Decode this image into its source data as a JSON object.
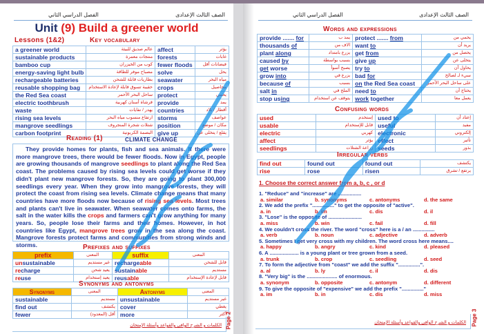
{
  "left_page": {
    "header_right": "الصف الثالث الإعدادى",
    "header_left": "الفصل الدراسي الثاني",
    "title": {
      "unit": "Unit",
      "num": "(9)",
      "name": "Build a greener world"
    },
    "lessons": "Lessons (1&2)",
    "key_vocab_title": "Key vocabulary",
    "vocab": [
      [
        "a greener world",
        "عالم صديق للبيئة",
        "affect",
        "يؤثر"
      ],
      [
        "sustainable products",
        "منتجات معمرة",
        "forests",
        "غابات"
      ],
      [
        "bamboo cup",
        "كوب من الخيزران",
        "fewer floods",
        "فيضانات أقل"
      ],
      [
        "energy-saving light bulb",
        "مصباح موفر للطاقة",
        "solve",
        "يحل"
      ],
      [
        "rechargeable batteries",
        "بطاريات قابلة للشحن",
        "seawater",
        "مياه البحر"
      ],
      [
        "reusable shopping bag",
        "حقيبة تسوق قابلة لإعادة الاستخدام",
        "crops",
        "محاصيل"
      ],
      [
        "the Red Sea coast",
        "ساحل البحر الأحمر",
        "protect",
        "يحمي"
      ],
      [
        "electric toothbrush",
        "فرشاة أسنان كهربية",
        "provide",
        "يمد"
      ],
      [
        "waste",
        "يهدر / نفايات",
        "countries",
        "أقطار / بلاد"
      ],
      [
        "rising sea levels",
        "ارتفاع منسوب مياه البحر",
        "storms",
        "عواصف"
      ],
      [
        "mangrove seedlings",
        "شتلات شجرة المنجروف",
        "position",
        "مكان / موضع"
      ],
      [
        "carbon footprint",
        "البصمة الكربونية",
        "give up",
        "يقلع / يتخلى عن"
      ]
    ],
    "reading_title": "Reading (1)",
    "reading_subtitle": "CLIMATE CHANGE",
    "reading": [
      {
        "t": "They provide homes for plants, fish and sea animals. If there were more mangrove trees, there would be fewer floods. Now in Egypt, people are growing thousands of mangrove "
      },
      {
        "t": "seedlings",
        "red": true
      },
      {
        "t": " to plant along the Red Sea coast. The problems caused by rising sea levels could get worse if they didn't plant new mangrove forests. So, they are going to plant 300,000 seedlings every year. When they grow into mangrove forests, they will protect the coast from rising sea levels. Climate change means that many countries have more floods now because of "
      },
      {
        "t": "rising sea levels",
        "red": true
      },
      {
        "t": ". Most trees and plants can't live in seawater. When seawater comes onto farms, the salt in the water kills the "
      },
      {
        "t": "crops",
        "red": true
      },
      {
        "t": " and farmers can't grow anything for many years. So, people lose their farms and their homes. However, in hot countries like Egypt, "
      },
      {
        "t": "mangrove trees",
        "red": true
      },
      {
        "t": " grow in the sea along the coast. Mangrove forests protect farms and communities from strong winds and storms."
      }
    ],
    "prefix_title": "Prefixes and suffixes",
    "prefix_head": [
      "prefix",
      "المعنى",
      "suffix",
      "المعنى"
    ],
    "prefix_rows": [
      {
        "p1": "un",
        "w1": "sustainable",
        "a1": "غير مستديم",
        "w2": "recharge",
        "s2": "able",
        "a2": "قابل للشحن"
      },
      {
        "p1": "re",
        "w1": "charge",
        "a1": "يعيد شحن",
        "w2": "sustain",
        "s2": "able",
        "a2": "مستديم"
      },
      {
        "p1": "re",
        "w1": "use",
        "a1": "يعيد إستخدام",
        "w2": "reus",
        "s2": "able",
        "a2": "قابل لإعادة الإستخدام"
      }
    ],
    "syn_title": "Synonyms and antonyms",
    "syn_head": [
      "Synonyms",
      "المعنى",
      "Antonyms",
      "المعنى"
    ],
    "syn_rows": [
      [
        "sustainable",
        "مستديم",
        "unsustainable",
        "غير مستديم"
      ],
      [
        "find out",
        "يكتشف",
        "cover",
        "يغطي"
      ],
      [
        "fewer",
        "أقل (المعدود)",
        "more",
        "أكثر"
      ]
    ],
    "footer": "الكلمات و الشرح الوافى والقواعد وأسئلة الإمتحان",
    "page_label": "Page 2"
  },
  "right_page": {
    "header_right": "الصف الثالث الإعدادى",
    "header_left": "الفصل الدراسي الثاني",
    "words_title": "Words and expressions",
    "words": [
      [
        {
          "a": "provide ....... ",
          "u": "for"
        },
        "يمد ب",
        {
          "a": "protect ....... ",
          "u": "from"
        },
        "يحمي من"
      ],
      [
        {
          "a": "thousands ",
          "u": "of"
        },
        "الاف من",
        {
          "a": "want  ",
          "u": "to"
        },
        "يريد أن"
      ],
      [
        {
          "a": "plant ",
          "u": "along"
        },
        "يزرع بامتداد",
        {
          "a": "get ",
          "u": "from"
        },
        "يحصل من"
      ],
      [
        {
          "a": "caused ",
          "u": "by"
        },
        "بسبب بواسطة",
        {
          "a": "give ",
          "u": "up"
        },
        "يتخلى عن"
      ],
      [
        {
          "a": "",
          "u": "get",
          "b": " worse"
        },
        "يصبح أسوأ",
        {
          "a": "try ",
          "u": "to"
        },
        "يحاول أن"
      ],
      [
        {
          "a": "grow ",
          "u": "into"
        },
        "يزرع في",
        {
          "a": "bad ",
          "u": "for"
        },
        "سيء لـ لصالح"
      ],
      [
        {
          "a": "because ",
          "u": "of"
        },
        "بسبب",
        {
          "a": "",
          "u": "on",
          "b": " the Red Sea coast"
        },
        "على ساحل البحر الأحمر"
      ],
      [
        {
          "a": "salt ",
          "u": "in"
        },
        "الملح في",
        {
          "a": "need ",
          "u": "to"
        },
        "يحتاج أن"
      ],
      [
        {
          "a": "stop us",
          "u": "ing"
        },
        "يتوقف عن استخدام",
        {
          "a": "",
          "u": "work",
          "b": " together"
        },
        "يعمل معا"
      ]
    ],
    "confusing_title": "Confusing words",
    "confusing": [
      [
        "used",
        "إستخدم",
        "used to",
        "إعتاد أن"
      ],
      [
        "usable",
        "قابل للإستخدام",
        "useful",
        "مفيد"
      ],
      [
        "electric",
        "كهربي",
        "electronic",
        "إلكتروني"
      ],
      [
        "affect",
        "يؤثر",
        "effect",
        "تأثير"
      ],
      [
        "seedlings",
        "زراعة الشتلات",
        "seeds",
        "بذور"
      ]
    ],
    "irregular_title": "Irregular verbs",
    "irregular": [
      [
        "find out",
        "found out",
        "found out",
        "يكتشف"
      ],
      [
        "rise",
        "rose",
        "risen",
        "يرتفع / تشرق"
      ]
    ],
    "q_heading": "1. Choose the correct answer from a, b, c , or d",
    "questions": [
      {
        "q": "1. \"Reduce\" and \"increase\" are ................",
        "o": [
          "a. similar",
          "b. synonyms",
          "c. antonyms",
          "d. the same"
        ]
      },
      {
        "q": "2. We add the prefix \"...............\" to get the opposite of \"active\".",
        "o": [
          "a. in",
          "b. im",
          "c. dis",
          "d. il"
        ]
      },
      {
        "q": "3. \"Lose\" is the opposite of .......................",
        "o": [
          "a. miss",
          "b. win",
          "c. fail",
          "d. fill"
        ]
      },
      {
        "q": "4. We couldn't cross the river. The word \"cross\" here is a / an ...............",
        "o": [
          "a. verb",
          "b. noun",
          "c. adjective",
          "d. adverb"
        ]
      },
      {
        "q": "5. Sometimes I get very cross with my children. The word cross here means....",
        "o": [
          "a. happy",
          "b. angry",
          "c. kind",
          "d. pleased"
        ]
      },
      {
        "q": "6.  A .................... is a young plant or tree grown from a seed.",
        "o": [
          "a. trunk",
          "b. crop",
          "c. seedling",
          "d. seed"
        ]
      },
      {
        "q": "7. To form the adjective from \"coast\" we add the suffix \"...............\".",
        "o": [
          "a. al",
          "b. ly",
          "c. il",
          "d. dis"
        ]
      },
      {
        "q": "8. \"Very big\" is the ..................... of enormous.",
        "o": [
          "a. synonym",
          "b. opposite",
          "c. antonym",
          "d. different"
        ]
      },
      {
        "q": "9. To give the opposite of \"expensive\" we add the prefix \"...............\"",
        "o": [
          "a. im",
          "b. in",
          "c. dis",
          "d. miss"
        ]
      }
    ],
    "footer": "الكلمات و الشرح الوافى والقواعد وأسئلة الإمتحان",
    "page_label": "Page 3"
  },
  "watermark": "إدارة تنمية مادة التربية والتعليم",
  "colors": {
    "navy": "#1f3a9a",
    "red": "#d21a1a",
    "prefix_header": "#f5b800",
    "suffix_header": "#f7f000",
    "watermark": "#0b8fe8"
  }
}
